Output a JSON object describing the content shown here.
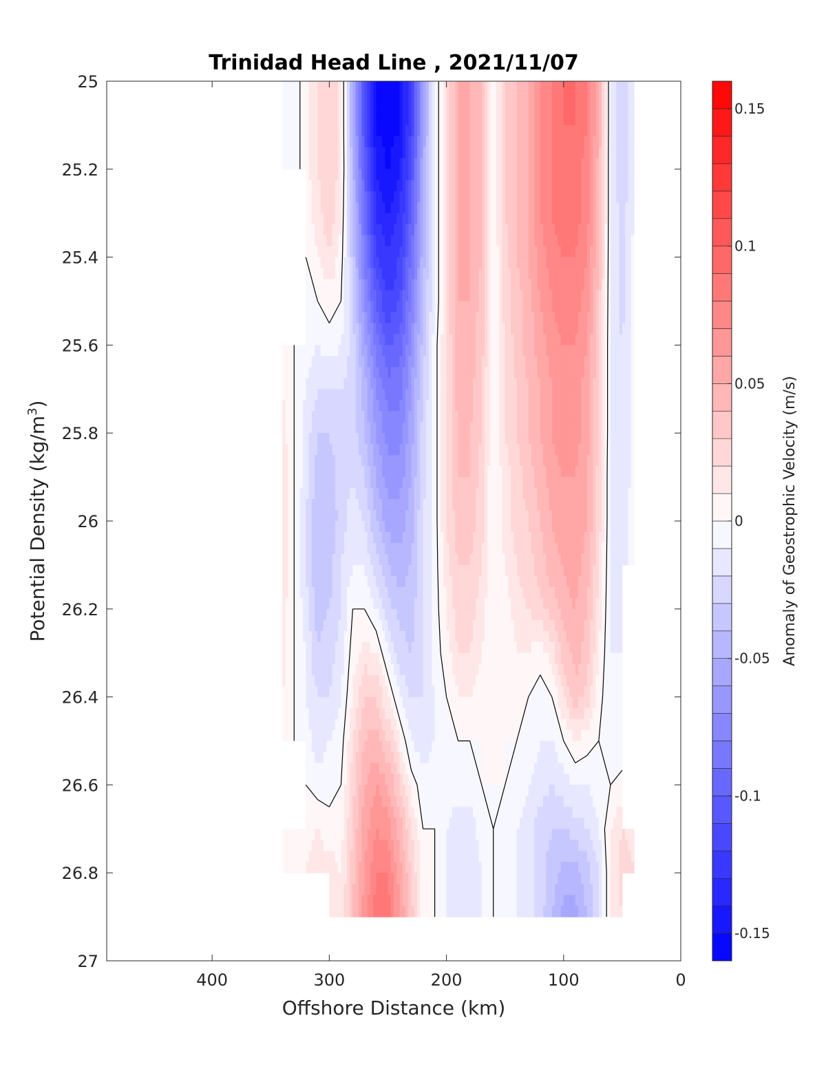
{
  "chart_data": {
    "type": "heatmap",
    "title": "Trinidad Head Line , 2021/11/07",
    "xlabel": "Offshore Distance (km)",
    "ylabel_main": "Potential Density (kg/m",
    "ylabel_sup": "3",
    "ylabel_close": ")",
    "colorbar_label": "Anomaly of Geostrophic Velocity (m/s)",
    "xlim": [
      490,
      0
    ],
    "ylim": [
      25,
      27
    ],
    "x_ticks": [
      400,
      300,
      200,
      100,
      0
    ],
    "y_ticks": [
      "25",
      "25.2",
      "25.4",
      "25.6",
      "25.8",
      "26",
      "26.2",
      "26.4",
      "26.6",
      "26.8",
      "27"
    ],
    "colorbar_ticks": [
      "0.15",
      "0.1",
      "0.05",
      "0",
      "-0.05",
      "-0.1",
      "-0.15"
    ],
    "clim": [
      -0.16,
      0.16
    ],
    "contour_levels": 32,
    "colormap": {
      "negative": "#0000ff",
      "zero": "#ffffff",
      "positive": "#ff0000"
    },
    "x": [
      340,
      330,
      320,
      310,
      300,
      290,
      280,
      270,
      260,
      250,
      240,
      230,
      220,
      210,
      200,
      190,
      180,
      170,
      160,
      150,
      140,
      130,
      120,
      110,
      100,
      90,
      80,
      70,
      60,
      50,
      40,
      30
    ],
    "y": [
      25.0,
      25.1,
      25.2,
      25.3,
      25.4,
      25.5,
      25.6,
      25.7,
      25.8,
      25.9,
      26.0,
      26.1,
      26.2,
      26.3,
      26.4,
      26.5,
      26.6,
      26.7,
      26.8,
      26.9
    ],
    "velocity_anomaly_rows": [
      [
        -0.01,
        -0.005,
        0.005,
        0.02,
        0.03,
        0.015,
        -0.05,
        -0.11,
        -0.15,
        -0.16,
        -0.15,
        -0.12,
        -0.06,
        -0.01,
        0.02,
        0.05,
        0.05,
        0.04,
        0.0,
        0.03,
        0.04,
        0.05,
        0.07,
        0.08,
        0.09,
        0.09,
        0.08,
        0.05,
        -0.01,
        -0.03,
        -0.01,
        null
      ],
      [
        -0.01,
        -0.005,
        0.005,
        0.02,
        0.03,
        0.015,
        -0.05,
        -0.11,
        -0.15,
        -0.16,
        -0.15,
        -0.12,
        -0.06,
        -0.01,
        0.02,
        0.05,
        0.05,
        0.04,
        0.0,
        0.03,
        0.04,
        0.05,
        0.07,
        0.08,
        0.09,
        0.09,
        0.08,
        0.05,
        -0.01,
        -0.03,
        -0.01,
        null
      ],
      [
        -0.01,
        -0.005,
        0.005,
        0.02,
        0.03,
        0.015,
        -0.045,
        -0.1,
        -0.14,
        -0.15,
        -0.14,
        -0.11,
        -0.05,
        -0.01,
        0.02,
        0.05,
        0.05,
        0.04,
        0.0,
        0.03,
        0.04,
        0.05,
        0.07,
        0.08,
        0.085,
        0.085,
        0.075,
        0.045,
        -0.01,
        -0.03,
        -0.01,
        null
      ],
      [
        null,
        null,
        0.005,
        0.015,
        0.03,
        0.01,
        -0.04,
        -0.09,
        -0.13,
        -0.14,
        -0.13,
        -0.1,
        -0.05,
        -0.01,
        0.02,
        0.05,
        0.05,
        0.04,
        0.0,
        0.03,
        0.04,
        0.05,
        0.07,
        0.08,
        0.085,
        0.085,
        0.075,
        0.045,
        -0.01,
        -0.025,
        -0.01,
        null
      ],
      [
        null,
        null,
        0.0,
        0.01,
        0.02,
        0.005,
        -0.035,
        -0.08,
        -0.12,
        -0.13,
        -0.12,
        -0.09,
        -0.045,
        -0.01,
        0.02,
        0.05,
        0.05,
        0.04,
        0.0,
        0.025,
        0.04,
        0.05,
        0.065,
        0.075,
        0.08,
        0.08,
        0.07,
        0.04,
        -0.01,
        -0.025,
        -0.005,
        null
      ],
      [
        null,
        null,
        -0.005,
        0.0,
        0.005,
        0.0,
        -0.03,
        -0.07,
        -0.1,
        -0.12,
        -0.11,
        -0.08,
        -0.04,
        -0.01,
        0.02,
        0.05,
        0.05,
        0.035,
        0.0,
        0.025,
        0.035,
        0.045,
        0.06,
        0.07,
        0.075,
        0.075,
        0.065,
        0.035,
        -0.01,
        -0.025,
        -0.005,
        null
      ],
      [
        0.005,
        0.0,
        -0.005,
        -0.01,
        -0.005,
        -0.01,
        -0.025,
        -0.055,
        -0.085,
        -0.1,
        -0.095,
        -0.07,
        -0.035,
        -0.005,
        0.02,
        0.045,
        0.045,
        0.035,
        0.0,
        0.02,
        0.035,
        0.045,
        0.055,
        0.065,
        0.07,
        0.07,
        0.06,
        0.03,
        -0.01,
        -0.02,
        -0.005,
        null
      ],
      [
        0.01,
        0.0,
        -0.01,
        -0.02,
        -0.02,
        -0.02,
        -0.025,
        -0.045,
        -0.07,
        -0.085,
        -0.085,
        -0.06,
        -0.03,
        -0.005,
        0.02,
        0.045,
        0.045,
        0.03,
        0.0,
        0.02,
        0.03,
        0.04,
        0.05,
        0.06,
        0.065,
        0.065,
        0.055,
        0.03,
        -0.01,
        -0.02,
        -0.005,
        null
      ],
      [
        0.015,
        0.0,
        -0.015,
        -0.03,
        -0.03,
        -0.025,
        -0.025,
        -0.04,
        -0.06,
        -0.075,
        -0.075,
        -0.055,
        -0.025,
        -0.005,
        0.02,
        0.04,
        0.04,
        0.03,
        0.0,
        0.02,
        0.03,
        0.04,
        0.05,
        0.06,
        0.065,
        0.065,
        0.055,
        0.03,
        -0.01,
        -0.02,
        -0.005,
        null
      ],
      [
        0.02,
        0.0,
        -0.015,
        -0.035,
        -0.035,
        -0.025,
        -0.02,
        -0.03,
        -0.05,
        -0.065,
        -0.065,
        -0.05,
        -0.025,
        -0.005,
        0.02,
        0.04,
        0.04,
        0.025,
        0.0,
        0.015,
        0.025,
        0.035,
        0.045,
        0.055,
        0.06,
        0.06,
        0.05,
        0.025,
        -0.01,
        -0.02,
        -0.005,
        null
      ],
      [
        0.02,
        0.0,
        -0.02,
        -0.04,
        -0.04,
        -0.025,
        -0.015,
        -0.02,
        -0.04,
        -0.055,
        -0.055,
        -0.045,
        -0.02,
        -0.005,
        0.02,
        0.035,
        0.035,
        0.025,
        0.0,
        0.015,
        0.025,
        0.03,
        0.04,
        0.05,
        0.055,
        0.06,
        0.05,
        0.025,
        -0.01,
        -0.015,
        -0.005,
        null
      ],
      [
        0.02,
        0.0,
        -0.02,
        -0.04,
        -0.035,
        -0.02,
        -0.01,
        -0.01,
        -0.025,
        -0.04,
        -0.045,
        -0.04,
        -0.02,
        -0.005,
        0.015,
        0.03,
        0.03,
        0.02,
        0.0,
        0.01,
        0.02,
        0.025,
        0.035,
        0.045,
        0.05,
        0.055,
        0.045,
        0.02,
        -0.01,
        -0.015,
        -0.005,
        null
      ],
      [
        0.015,
        0.0,
        -0.015,
        -0.035,
        -0.03,
        -0.02,
        0.0,
        0.0,
        -0.01,
        -0.025,
        -0.035,
        -0.035,
        -0.02,
        -0.005,
        0.01,
        0.025,
        0.025,
        0.015,
        0.0,
        0.005,
        0.015,
        0.02,
        0.025,
        0.035,
        0.045,
        0.05,
        0.04,
        0.015,
        -0.01,
        -0.015,
        null,
        null
      ],
      [
        0.015,
        0.0,
        -0.01,
        -0.03,
        -0.025,
        -0.015,
        0.005,
        0.015,
        0.01,
        -0.01,
        -0.025,
        -0.03,
        -0.02,
        -0.005,
        0.005,
        0.02,
        0.02,
        0.01,
        0.0,
        0.0,
        0.01,
        0.01,
        0.005,
        0.015,
        0.035,
        0.045,
        0.035,
        0.01,
        -0.01,
        -0.01,
        null,
        null
      ],
      [
        0.01,
        0.0,
        -0.01,
        -0.02,
        -0.02,
        -0.01,
        0.01,
        0.03,
        0.03,
        0.01,
        -0.01,
        -0.02,
        -0.02,
        -0.01,
        0.0,
        0.01,
        0.01,
        0.005,
        0.0,
        0.0,
        0.005,
        0.0,
        -0.005,
        0.0,
        0.02,
        0.035,
        0.025,
        0.005,
        -0.01,
        -0.01,
        null,
        null
      ],
      [
        0.01,
        0.0,
        -0.005,
        -0.015,
        -0.01,
        -0.005,
        0.02,
        0.04,
        0.045,
        0.03,
        0.01,
        -0.01,
        -0.015,
        -0.01,
        -0.005,
        0.0,
        0.0,
        0.0,
        0.0,
        0.0,
        0.0,
        -0.005,
        -0.01,
        -0.01,
        0.0,
        0.01,
        0.005,
        0.0,
        -0.01,
        -0.01,
        null,
        null
      ],
      [
        null,
        null,
        0.0,
        -0.005,
        -0.005,
        0.0,
        0.025,
        0.05,
        0.06,
        0.05,
        0.03,
        0.005,
        -0.005,
        -0.005,
        -0.005,
        -0.005,
        -0.005,
        0.0,
        0.0,
        0.0,
        -0.005,
        -0.01,
        -0.015,
        -0.02,
        -0.015,
        -0.01,
        -0.01,
        -0.005,
        0.0,
        0.005,
        null,
        null
      ],
      [
        0.0,
        0.0,
        0.005,
        0.01,
        0.005,
        0.005,
        0.03,
        0.055,
        0.07,
        0.065,
        0.045,
        0.02,
        0.0,
        0.0,
        -0.01,
        -0.015,
        -0.015,
        -0.005,
        0.0,
        -0.005,
        -0.01,
        -0.015,
        -0.025,
        -0.03,
        -0.03,
        -0.025,
        -0.02,
        -0.01,
        0.01,
        0.02,
        0.015,
        null
      ],
      [
        0.0,
        0.0,
        0.01,
        0.015,
        0.015,
        0.01,
        0.035,
        0.06,
        0.08,
        0.08,
        0.055,
        0.03,
        0.005,
        0.0,
        -0.01,
        -0.02,
        -0.02,
        -0.01,
        0.0,
        -0.005,
        -0.01,
        -0.015,
        -0.025,
        -0.035,
        -0.045,
        -0.045,
        -0.035,
        -0.02,
        0.01,
        0.025,
        0.02,
        null
      ],
      [
        null,
        null,
        null,
        null,
        0.015,
        0.01,
        0.04,
        0.065,
        0.085,
        0.085,
        0.06,
        0.035,
        0.005,
        0.0,
        -0.01,
        -0.02,
        -0.02,
        -0.01,
        0.0,
        -0.005,
        -0.01,
        -0.015,
        -0.025,
        -0.04,
        -0.055,
        -0.055,
        -0.04,
        -0.02,
        0.01,
        0.02,
        null,
        null
      ]
    ]
  }
}
